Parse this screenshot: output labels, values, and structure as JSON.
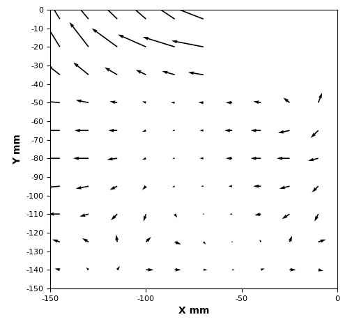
{
  "chart_data": {
    "type": "quiver",
    "x_label": "X mm",
    "y_label": "Y mm",
    "color": "#000000",
    "xlim": [
      -150,
      0
    ],
    "ylim": [
      -150,
      0
    ],
    "xticks": [
      -150,
      -100,
      -50,
      0
    ],
    "yticks": [
      0,
      -10,
      -20,
      -30,
      -40,
      -50,
      -60,
      -70,
      -80,
      -90,
      -100,
      -110,
      -120,
      -130,
      -140,
      -150
    ],
    "x": [
      -145,
      -130,
      -115,
      -100,
      -85,
      -70,
      -55,
      -40,
      -25,
      -10
    ],
    "y": [
      -5,
      -20,
      -35,
      -50,
      -65,
      -80,
      -95,
      -110,
      -125,
      -140
    ],
    "u": [
      [
        -1.5,
        -1.8,
        -2.0,
        -2.0,
        -2.2,
        -2.5,
        null,
        null,
        null,
        null
      ],
      [
        -1.2,
        -1.5,
        -2.0,
        -2.2,
        -2.5,
        -2.5,
        null,
        null,
        null,
        null
      ],
      [
        -1.0,
        -1.2,
        -1.0,
        -0.8,
        -1.0,
        -1.2,
        null,
        null,
        null,
        null
      ],
      [
        -1.2,
        -1.0,
        -0.6,
        -0.3,
        -0.3,
        -0.4,
        -0.5,
        -0.6,
        -0.5,
        0.3
      ],
      [
        -1.3,
        -1.1,
        -0.7,
        -0.3,
        -0.2,
        -0.3,
        -0.6,
        -0.8,
        -0.9,
        -0.6
      ],
      [
        -1.3,
        -1.2,
        -0.8,
        -0.3,
        -0.2,
        -0.3,
        -0.5,
        -0.8,
        -1.0,
        -0.8
      ],
      [
        -1.1,
        -1.0,
        -0.6,
        -0.3,
        -0.2,
        -0.2,
        -0.3,
        -0.6,
        -0.8,
        -0.5
      ],
      [
        -0.9,
        -0.7,
        -0.5,
        -0.2,
        0.2,
        0.0,
        -0.2,
        -0.5,
        -0.6,
        -0.3
      ],
      [
        -0.6,
        -0.5,
        -0.1,
        0.4,
        0.5,
        0.2,
        0.0,
        -0.1,
        0.2,
        0.6
      ],
      [
        -0.4,
        -0.2,
        0.2,
        0.6,
        0.5,
        0.3,
        0.2,
        0.3,
        0.5,
        0.4
      ]
    ],
    "v": [
      [
        2.5,
        2.2,
        2.0,
        1.8,
        1.5,
        1.0,
        null,
        null,
        null,
        null
      ],
      [
        2.0,
        2.0,
        1.5,
        1.0,
        0.8,
        0.5,
        null,
        null,
        null,
        null
      ],
      [
        0.8,
        1.0,
        0.6,
        0.4,
        0.3,
        0.2,
        null,
        null,
        null,
        null
      ],
      [
        0.1,
        0.2,
        0.1,
        0.1,
        0.0,
        0.0,
        0.0,
        0.1,
        0.4,
        0.8
      ],
      [
        0.0,
        0.0,
        0.0,
        -0.1,
        0.0,
        0.0,
        0.0,
        0.0,
        -0.2,
        -0.6
      ],
      [
        0.0,
        0.0,
        -0.1,
        -0.1,
        0.0,
        0.0,
        0.0,
        0.0,
        0.0,
        -0.2
      ],
      [
        -0.1,
        -0.2,
        -0.3,
        -0.3,
        -0.1,
        0.0,
        0.0,
        0.0,
        -0.2,
        -0.5
      ],
      [
        0.0,
        -0.2,
        -0.5,
        -0.6,
        -0.3,
        0.0,
        0.0,
        -0.1,
        -0.4,
        -0.6
      ],
      [
        0.2,
        0.3,
        0.6,
        0.4,
        -0.2,
        -0.2,
        0.0,
        0.2,
        0.5,
        0.2
      ],
      [
        0.1,
        0.2,
        0.3,
        0.0,
        0.0,
        0.0,
        0.0,
        0.1,
        0.0,
        -0.1
      ]
    ]
  }
}
